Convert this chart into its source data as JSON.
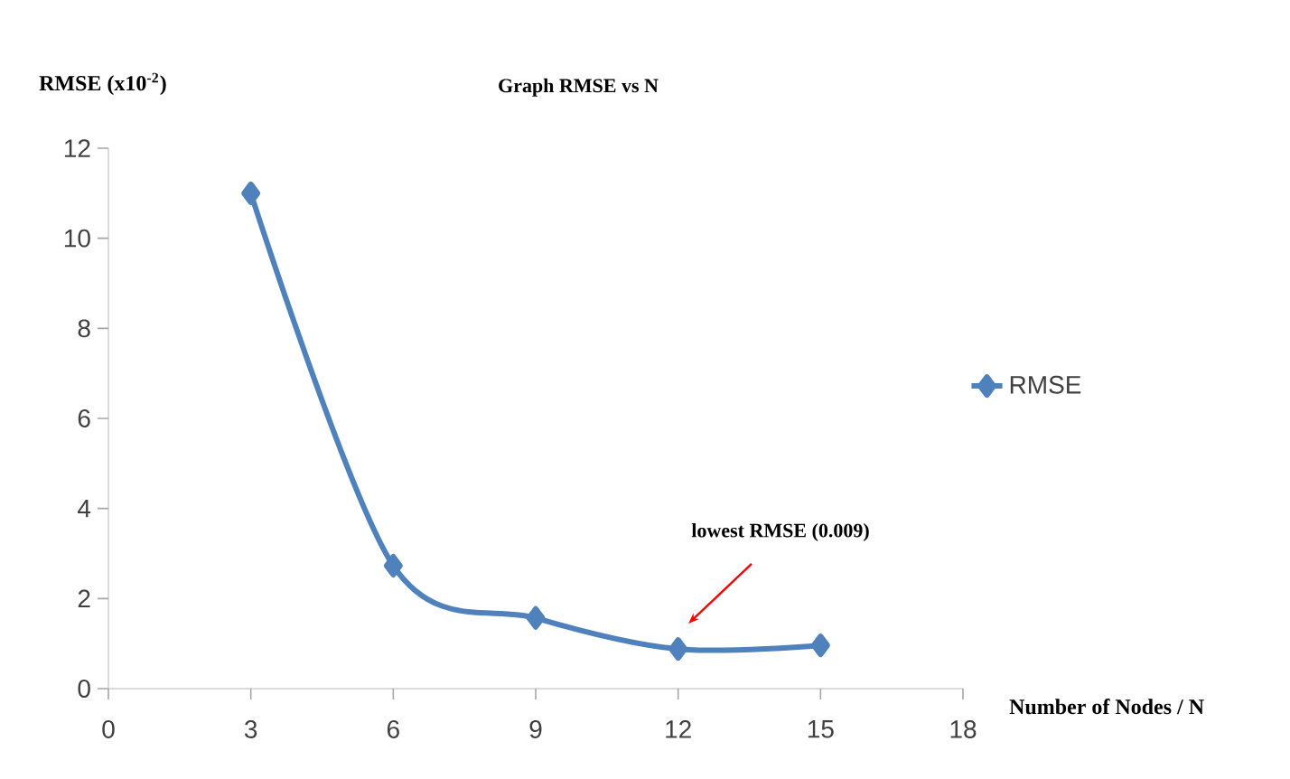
{
  "chart_data": {
    "type": "line",
    "title": "Graph RMSE vs N",
    "ylabel": "RMSE (x10$^{-2}$)",
    "xlabel": "Number of Nodes / N",
    "x": [
      3,
      6,
      9,
      12,
      15
    ],
    "series": [
      {
        "name": "RMSE",
        "color": "#4f81bd",
        "values": [
          11.0,
          2.73,
          1.57,
          0.88,
          0.96
        ]
      }
    ],
    "xlim": [
      0,
      18
    ],
    "xticks": [
      0,
      3,
      6,
      9,
      12,
      15,
      18
    ],
    "ylim": [
      0,
      12
    ],
    "yticks": [
      0,
      2,
      4,
      6,
      8,
      10,
      12
    ],
    "annotations": [
      "lowest RMSE (0.009)"
    ],
    "grid": false,
    "legend": "right",
    "marker": "diamond",
    "line_style": "solid"
  }
}
